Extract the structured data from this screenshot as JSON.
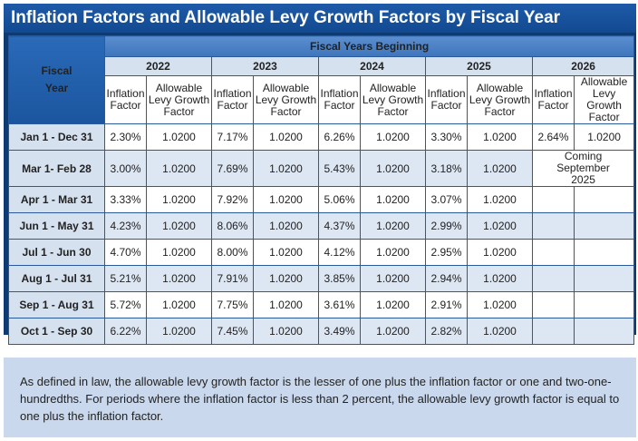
{
  "title": "Inflation Factors and Allowable Levy Growth Factors by Fiscal Year",
  "header": {
    "fiscal_label": "Fiscal Year",
    "fiscal_years_beginning": "Fiscal Years Beginning",
    "years": [
      "2022",
      "2023",
      "2024",
      "2025",
      "2026"
    ],
    "sub_inflation": "Inflation Factor",
    "sub_levy": "Allowable Levy Growth Factor"
  },
  "rows": [
    {
      "period": "Jan 1 - Dec 31",
      "values": [
        "2.30%",
        "1.0200",
        "7.17%",
        "1.0200",
        "6.26%",
        "1.0200",
        "3.30%",
        "1.0200",
        "2.64%",
        "1.0200"
      ]
    },
    {
      "period": "Mar 1- Feb 28",
      "values": [
        "3.00%",
        "1.0200",
        "7.69%",
        "1.0200",
        "5.43%",
        "1.0200",
        "3.18%",
        "1.0200"
      ],
      "coming": "Coming September 2025"
    },
    {
      "period": "Apr 1 - Mar 31",
      "values": [
        "3.33%",
        "1.0200",
        "7.92%",
        "1.0200",
        "5.06%",
        "1.0200",
        "3.07%",
        "1.0200",
        "",
        ""
      ]
    },
    {
      "period": "Jun 1 - May 31",
      "values": [
        "4.23%",
        "1.0200",
        "8.06%",
        "1.0200",
        "4.37%",
        "1.0200",
        "2.99%",
        "1.0200",
        "",
        ""
      ]
    },
    {
      "period": "Jul 1 - Jun 30",
      "values": [
        "4.70%",
        "1.0200",
        "8.00%",
        "1.0200",
        "4.12%",
        "1.0200",
        "2.95%",
        "1.0200",
        "",
        ""
      ]
    },
    {
      "period": "Aug 1 - Jul 31",
      "values": [
        "5.21%",
        "1.0200",
        "7.91%",
        "1.0200",
        "3.85%",
        "1.0200",
        "2.94%",
        "1.0200",
        "",
        ""
      ]
    },
    {
      "period": "Sep 1 - Aug 31",
      "values": [
        "5.72%",
        "1.0200",
        "7.75%",
        "1.0200",
        "3.61%",
        "1.0200",
        "2.91%",
        "1.0200",
        "",
        ""
      ]
    },
    {
      "period": "Oct 1 - Sep 30",
      "values": [
        "6.22%",
        "1.0200",
        "7.45%",
        "1.0200",
        "3.49%",
        "1.0200",
        "2.82%",
        "1.0200",
        "",
        ""
      ]
    }
  ],
  "note": "As defined in law, the allowable levy growth factor is the lesser of one plus the inflation factor or one and two-one-hundredths. For periods where the inflation factor is less than 2 percent, the allowable levy growth factor is equal to one plus the inflation factor."
}
